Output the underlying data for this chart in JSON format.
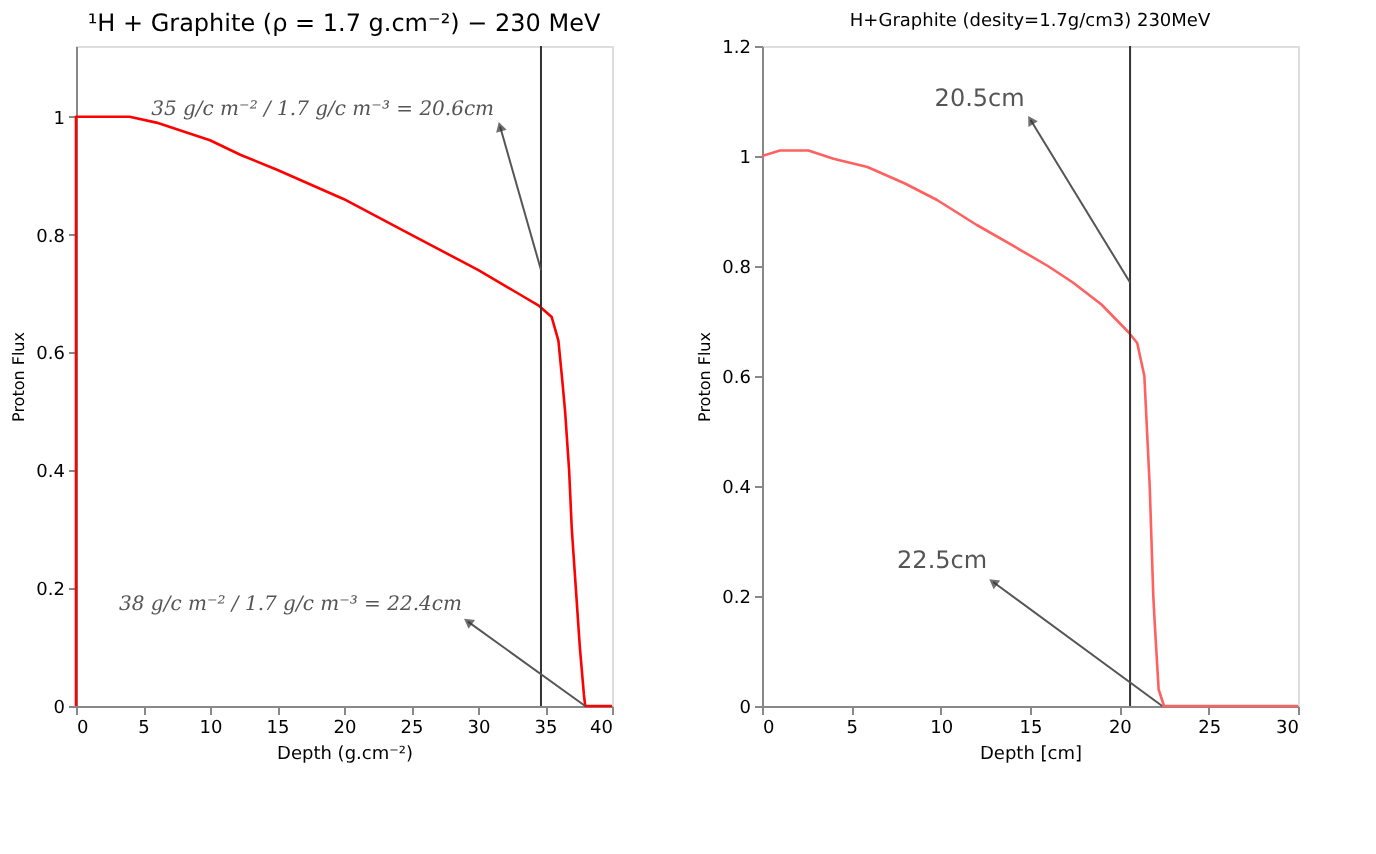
{
  "chart_data": [
    {
      "type": "line",
      "title": "¹H + Graphite (ρ = 1.7 g.cm⁻²) − 230 MeV",
      "xlabel": "Depth (g.cm⁻²)",
      "ylabel": "Proton Flux",
      "xlim": [
        0,
        40
      ],
      "xticks": [
        0,
        5,
        10,
        15,
        20,
        25,
        30,
        35,
        40
      ],
      "ylim": [
        0,
        1.12
      ],
      "yticks": [
        0,
        0.2,
        0.4,
        0.6,
        0.8,
        1
      ],
      "grid": false,
      "marker": "none",
      "line_style": "solid",
      "series": [
        {
          "color": "#ff0000",
          "x": [
            0,
            0,
            4,
            6,
            10,
            12.3,
            15,
            20,
            25,
            30,
            33,
            34.5,
            35.5,
            36,
            36.3,
            36.5,
            36.8,
            37.0,
            37.3,
            37.6,
            37.9,
            38,
            40
          ],
          "values": [
            0,
            1.0,
            1.0,
            0.99,
            0.96,
            0.935,
            0.91,
            0.86,
            0.8,
            0.74,
            0.7,
            0.68,
            0.66,
            0.62,
            0.55,
            0.5,
            0.4,
            0.3,
            0.2,
            0.1,
            0.02,
            0,
            0
          ]
        }
      ],
      "ref_lines": [
        {
          "axis": "x",
          "value": 34.7,
          "color": "#333333"
        }
      ],
      "annotations": [
        {
          "text": "35 g/c m⁻² / 1.7 g/c m⁻³ = 20.6cm",
          "x": 34.7,
          "y": 0.74
        },
        {
          "text": "38 g/c m⁻² / 1.7 g/c m⁻³ = 22.4cm",
          "x": 38,
          "y": 0
        }
      ]
    },
    {
      "type": "line",
      "title": "H+Graphite (desity=1.7g/cm3) 230MeV",
      "xlabel": "Depth [cm]",
      "ylabel": "Proton Flux",
      "xlim": [
        0,
        30
      ],
      "xticks": [
        0,
        5,
        10,
        15,
        20,
        25,
        30
      ],
      "ylim": [
        0,
        1.2
      ],
      "yticks": [
        0,
        0.2,
        0.4,
        0.6,
        0.8,
        1,
        1.2
      ],
      "grid": false,
      "marker": "none",
      "line_style": "solid",
      "series": [
        {
          "color": "#ff6060",
          "x": [
            0,
            1,
            2.6,
            4,
            5.9,
            8,
            9.8,
            12,
            14.1,
            16,
            17.4,
            19,
            20.5,
            21,
            21.4,
            21.7,
            21.9,
            22.0,
            22.2,
            22.5,
            30
          ],
          "values": [
            1.0,
            1.01,
            1.01,
            0.995,
            0.98,
            0.95,
            0.92,
            0.875,
            0.836,
            0.8,
            0.77,
            0.73,
            0.68,
            0.66,
            0.6,
            0.4,
            0.2,
            0.14,
            0.03,
            0,
            0
          ]
        }
      ],
      "ref_lines": [
        {
          "axis": "x",
          "value": 20.6,
          "color": "#333333"
        }
      ],
      "annotations": [
        {
          "text": "20.5cm",
          "x": 20.6,
          "y": 0.77
        },
        {
          "text": "22.5cm",
          "x": 22.4,
          "y": 0
        }
      ]
    }
  ]
}
